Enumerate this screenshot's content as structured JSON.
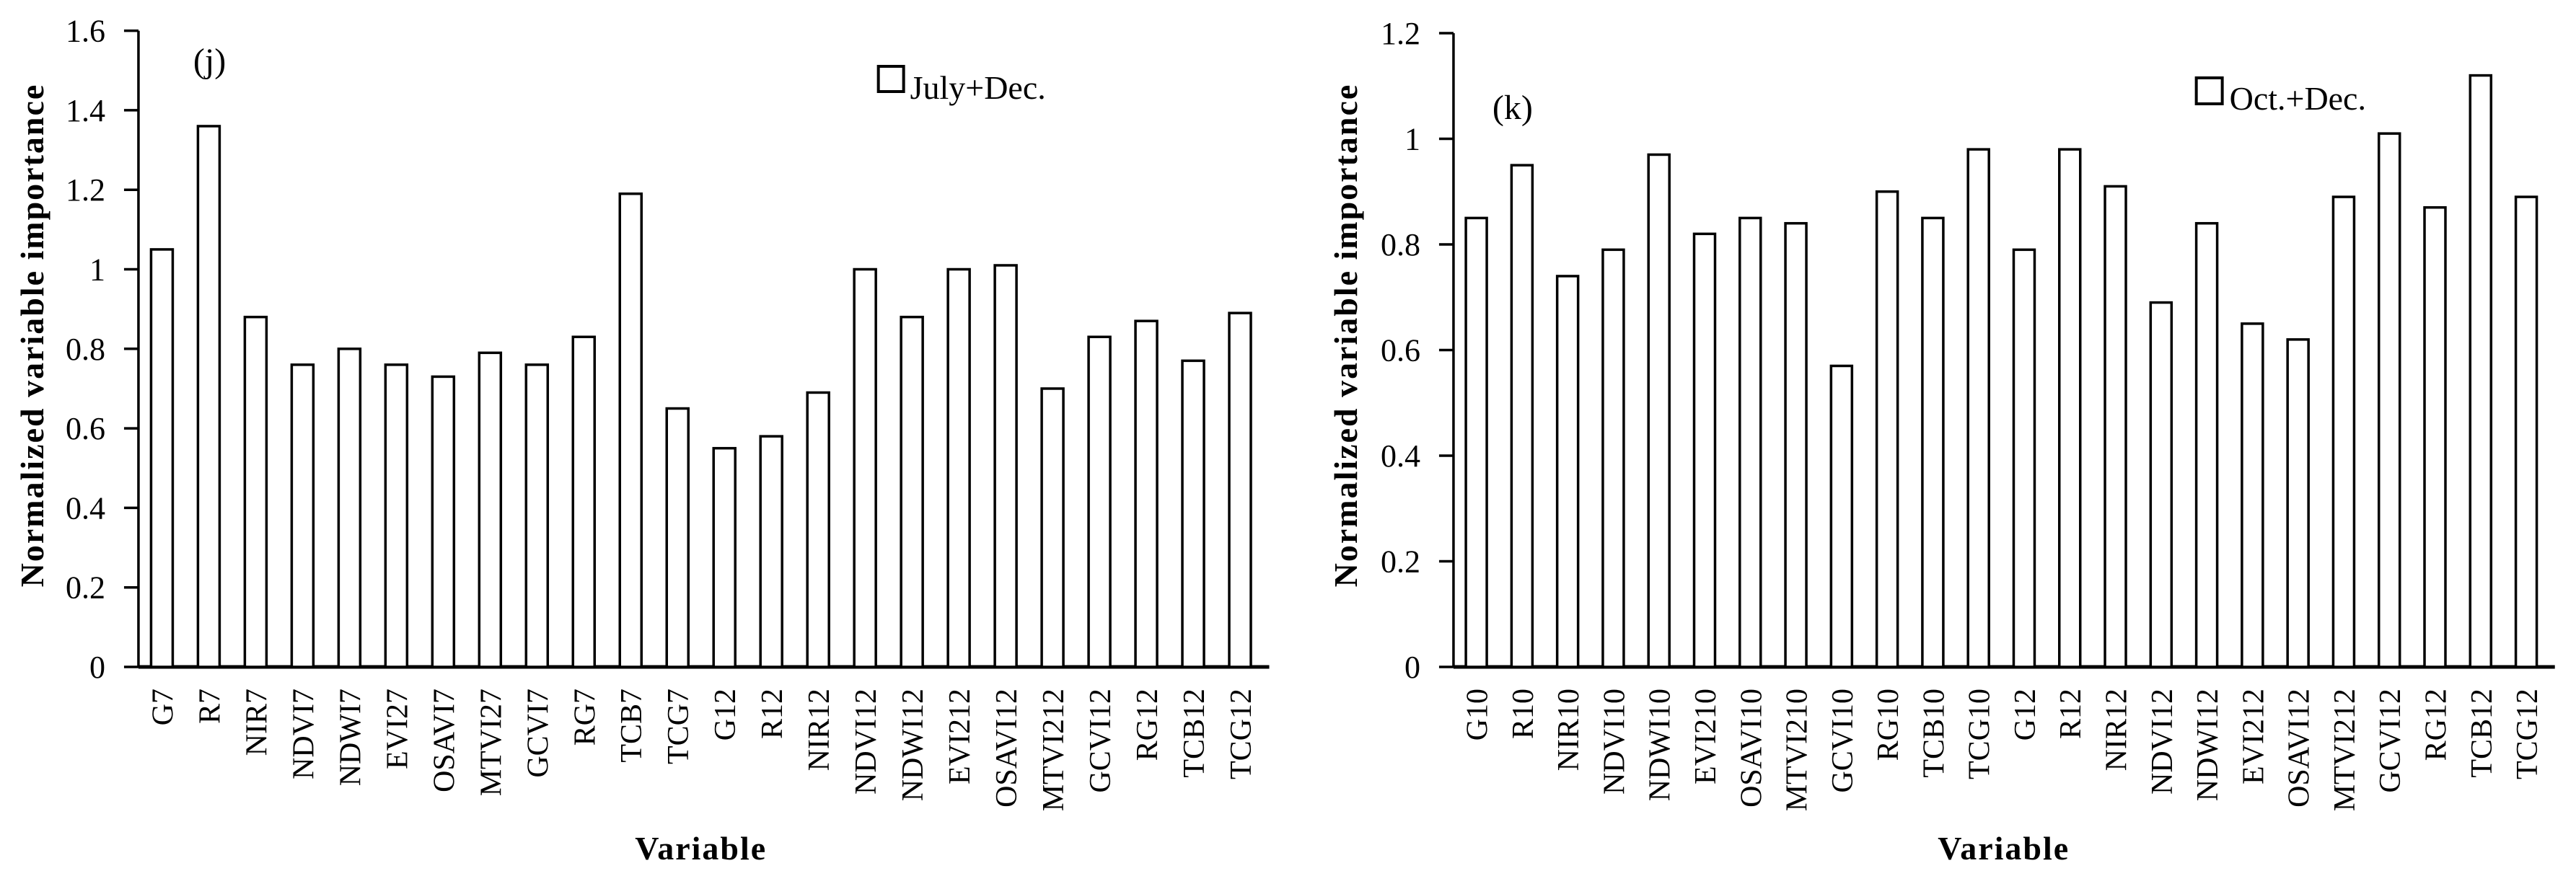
{
  "figure": {
    "background_color": "#ffffff",
    "ink_color": "#000000",
    "bar_fill": "#ffffff",
    "bar_stroke": "#000000"
  },
  "chart_data": [
    {
      "type": "bar",
      "panel_label": "(j)",
      "legend": "July+Dec.",
      "legend_position": "top-right-inside",
      "legend_marker": "open-square",
      "xlabel": "Variable",
      "ylabel": "Normalized variable importance",
      "ylim": [
        0,
        1.6
      ],
      "yticks": [
        0,
        0.2,
        0.4,
        0.6,
        0.8,
        1,
        1.2,
        1.4,
        1.6
      ],
      "grid": false,
      "categories": [
        "G7",
        "R7",
        "NIR7",
        "NDVI7",
        "NDWI7",
        "EVI27",
        "OSAVI7",
        "MTVI27",
        "GCVI7",
        "RG7",
        "TCB7",
        "TCG7",
        "G12",
        "R12",
        "NIR12",
        "NDVI12",
        "NDWI12",
        "EVI212",
        "OSAVI12",
        "MTVI212",
        "GCVI12",
        "RG12",
        "TCB12",
        "TCG12"
      ],
      "values": [
        1.05,
        1.36,
        0.88,
        0.76,
        0.8,
        0.76,
        0.73,
        0.79,
        0.76,
        0.83,
        1.19,
        0.65,
        0.55,
        0.58,
        0.69,
        1.0,
        0.88,
        1.0,
        1.01,
        0.7,
        0.83,
        0.87,
        0.77,
        0.89
      ]
    },
    {
      "type": "bar",
      "panel_label": "(k)",
      "legend": "Oct.+Dec.",
      "legend_position": "top-right-inside",
      "legend_marker": "open-square",
      "xlabel": "Variable",
      "ylabel": "Normalized variable importance",
      "ylim": [
        0,
        1.2
      ],
      "yticks": [
        0,
        0.2,
        0.4,
        0.6,
        0.8,
        1,
        1.2
      ],
      "grid": false,
      "categories": [
        "G10",
        "R10",
        "NIR10",
        "NDVI10",
        "NDWI10",
        "EVI210",
        "OSAVI10",
        "MTVI210",
        "GCVI10",
        "RG10",
        "TCB10",
        "TCG10",
        "G12",
        "R12",
        "NIR12",
        "NDVI12",
        "NDWI12",
        "EVI212",
        "OSAVI12",
        "MTVI212",
        "GCVI12",
        "RG12",
        "TCB12",
        "TCG12"
      ],
      "values": [
        0.85,
        0.95,
        0.74,
        0.79,
        0.97,
        0.82,
        0.85,
        0.84,
        0.57,
        0.9,
        0.85,
        0.98,
        0.79,
        0.98,
        0.91,
        0.69,
        0.84,
        0.65,
        0.62,
        0.89,
        1.01,
        0.87,
        1.12,
        0.89
      ]
    }
  ]
}
